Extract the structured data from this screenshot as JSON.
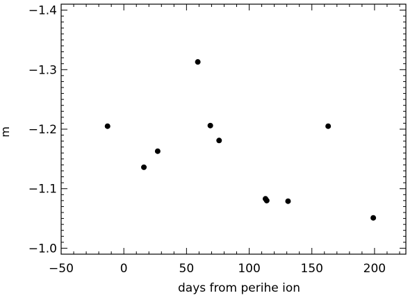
{
  "chart_data": {
    "type": "scatter",
    "title": "",
    "xlabel": "days from perihe ion",
    "ylabel": "m",
    "xlim": [
      -50,
      225
    ],
    "ylim": [
      -0.99,
      -1.41
    ],
    "y_reversed": true,
    "grid": false,
    "legend": "none",
    "marker_color": "#000000",
    "axis_color": "#000000",
    "x_ticks": [
      {
        "value": -50,
        "label": "−50"
      },
      {
        "value": 0,
        "label": "0"
      },
      {
        "value": 50,
        "label": "50"
      },
      {
        "value": 100,
        "label": "100"
      },
      {
        "value": 150,
        "label": "150"
      },
      {
        "value": 200,
        "label": "200"
      }
    ],
    "y_ticks": [
      {
        "value": -1.0,
        "label": "−1.0"
      },
      {
        "value": -1.1,
        "label": "−1.1"
      },
      {
        "value": -1.2,
        "label": "−1.2"
      },
      {
        "value": -1.3,
        "label": "−1.3"
      },
      {
        "value": -1.4,
        "label": "−1.4"
      }
    ],
    "series": [
      {
        "points": [
          {
            "x": -13,
            "y": -1.205
          },
          {
            "x": 16,
            "y": -1.136
          },
          {
            "x": 27,
            "y": -1.163
          },
          {
            "x": 59,
            "y": -1.313
          },
          {
            "x": 69,
            "y": -1.206
          },
          {
            "x": 76,
            "y": -1.181
          },
          {
            "x": 113,
            "y": -1.083
          },
          {
            "x": 114,
            "y": -1.08
          },
          {
            "x": 131,
            "y": -1.079
          },
          {
            "x": 163,
            "y": -1.205
          },
          {
            "x": 199,
            "y": -1.051
          }
        ]
      }
    ]
  }
}
